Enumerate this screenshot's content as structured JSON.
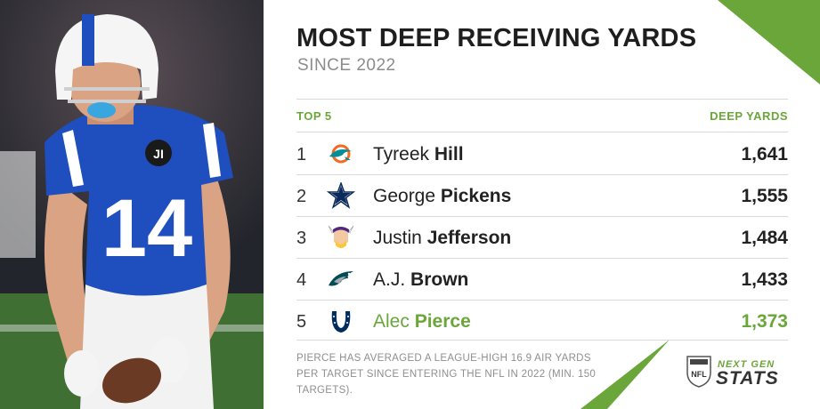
{
  "title": "MOST DEEP RECEIVING YARDS",
  "subtitle": "SINCE 2022",
  "header": {
    "left": "TOP 5",
    "right": "DEEP YARDS"
  },
  "rows": [
    {
      "rank": "1",
      "first": "Tyreek",
      "last": "Hill",
      "yards": "1,641",
      "team_icon": "dolphins-logo-icon"
    },
    {
      "rank": "2",
      "first": "George",
      "last": "Pickens",
      "yards": "1,555",
      "team_icon": "cowboys-star-icon"
    },
    {
      "rank": "3",
      "first": "Justin",
      "last": "Jefferson",
      "yards": "1,484",
      "team_icon": "vikings-logo-icon"
    },
    {
      "rank": "4",
      "first": "A.J.",
      "last": "Brown",
      "yards": "1,433",
      "team_icon": "eagles-logo-icon"
    },
    {
      "rank": "5",
      "first": "Alec",
      "last": "Pierce",
      "yards": "1,373",
      "team_icon": "colts-horseshoe-icon",
      "highlight": true
    }
  ],
  "note": "PIERCE HAS AVERAGED A LEAGUE-HIGH 16.9 AIR YARDS PER TARGET SINCE ENTERING THE NFL IN 2022 (MIN. 150 TARGETS).",
  "brand": {
    "line1": "NEXT GEN",
    "line2": "STATS",
    "shield": "NFL"
  },
  "photo": {
    "jersey_number": "14",
    "patch": "JI"
  },
  "colors": {
    "accent": "#6aa63a",
    "jersey": "#1f4fbf",
    "title": "#1e1e1e"
  }
}
